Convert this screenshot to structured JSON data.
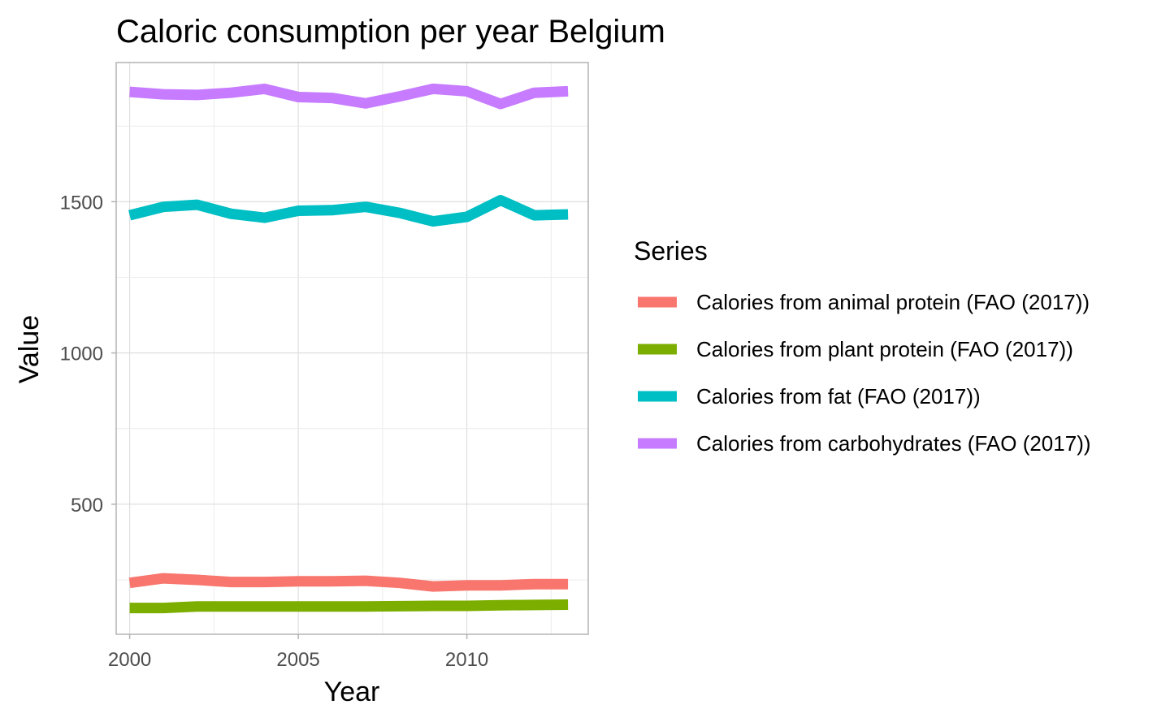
{
  "chart_data": {
    "type": "line",
    "title": "Caloric consumption per year Belgium",
    "xlabel": "Year",
    "ylabel": "Value",
    "x": [
      2000,
      2001,
      2002,
      2003,
      2004,
      2005,
      2006,
      2007,
      2008,
      2009,
      2010,
      2011,
      2012,
      2013
    ],
    "xlim": [
      1999.6,
      2013.6
    ],
    "ylim": [
      70,
      1960
    ],
    "x_ticks": [
      "2000",
      "2005",
      "2010"
    ],
    "y_ticks": [
      "500",
      "1000",
      "1500"
    ],
    "grid": true,
    "legend_title": "Series",
    "legend_position": "right",
    "series": [
      {
        "name": "Calories from animal protein (FAO (2017))",
        "color": "#F8766D",
        "values": [
          240,
          255,
          250,
          243,
          243,
          245,
          245,
          247,
          240,
          228,
          232,
          232,
          236,
          236
        ]
      },
      {
        "name": "Calories from plant protein (FAO (2017))",
        "color": "#7CAE00",
        "values": [
          157,
          157,
          162,
          162,
          162,
          162,
          162,
          162,
          163,
          164,
          164,
          166,
          167,
          168
        ]
      },
      {
        "name": "Calories from fat (FAO (2017))",
        "color": "#00BFC4",
        "values": [
          1455,
          1483,
          1490,
          1460,
          1447,
          1470,
          1472,
          1483,
          1463,
          1435,
          1450,
          1505,
          1455,
          1458
        ]
      },
      {
        "name": "Calories from carbohydrates (FAO (2017))",
        "color": "#C77CFF",
        "values": [
          1863,
          1855,
          1853,
          1860,
          1873,
          1846,
          1843,
          1825,
          1848,
          1873,
          1865,
          1823,
          1860,
          1865
        ]
      }
    ]
  }
}
